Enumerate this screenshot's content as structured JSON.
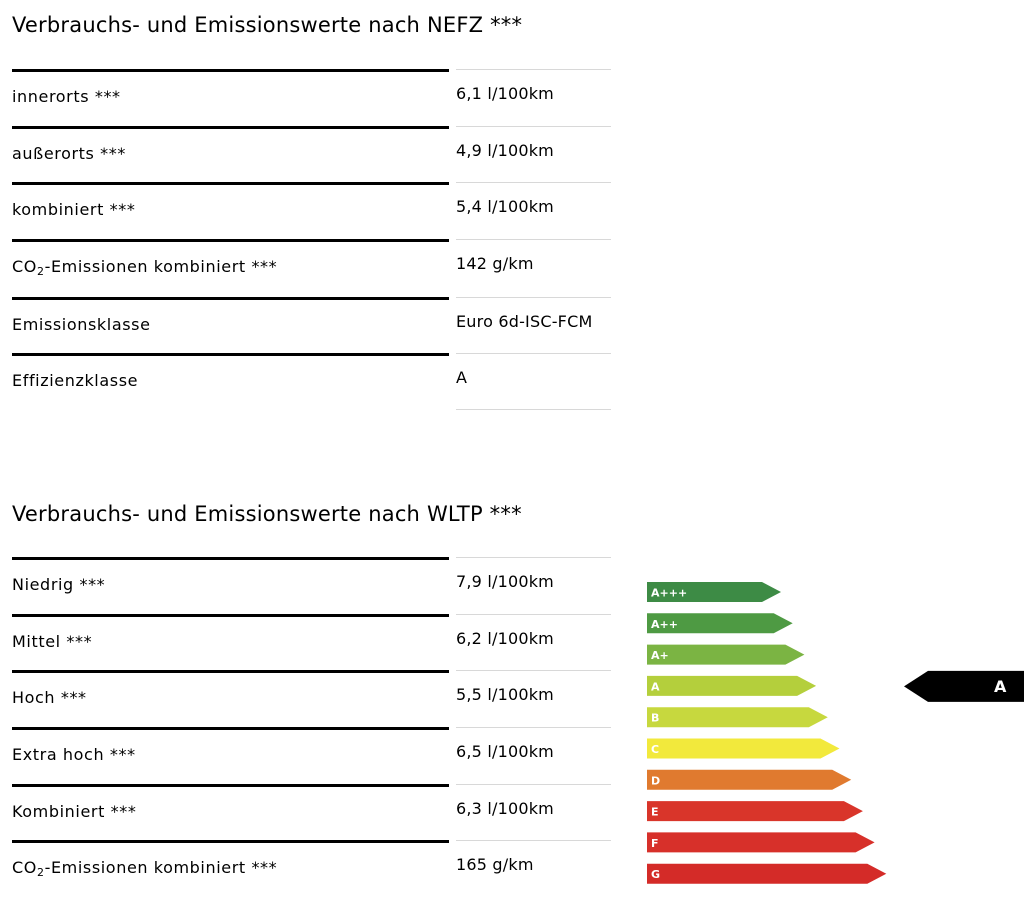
{
  "nefz": {
    "title": "Verbrauchs- und Emissionswerte nach NEFZ ***",
    "rows": [
      {
        "label": "innerorts ***",
        "value": "6,1 l/100km"
      },
      {
        "label": "außerorts ***",
        "value": "4,9 l/100km"
      },
      {
        "label": "kombiniert ***",
        "value": "5,4 l/100km"
      },
      {
        "label_pre": "CO",
        "label_sub": "2",
        "label_post": "-Emissionen kombiniert ***",
        "value": "142 g/km"
      },
      {
        "label": "Emissionsklasse",
        "value": "Euro 6d-ISC-FCM"
      },
      {
        "label": "Effizienzklasse",
        "value": "A"
      }
    ]
  },
  "wltp": {
    "title": "Verbrauchs- und Emissionswerte nach WLTP ***",
    "rows": [
      {
        "label": "Niedrig ***",
        "value": "7,9 l/100km"
      },
      {
        "label": "Mittel ***",
        "value": "6,2 l/100km"
      },
      {
        "label": "Hoch ***",
        "value": "5,5 l/100km"
      },
      {
        "label": "Extra hoch ***",
        "value": "6,5 l/100km"
      },
      {
        "label": "Kombiniert ***",
        "value": "6,3 l/100km"
      },
      {
        "label_pre": "CO",
        "label_sub": "2",
        "label_post": "-Emissionen kombiniert ***",
        "value": "165 g/km"
      }
    ]
  },
  "efficiency_label": {
    "classes": [
      {
        "label": "A+++",
        "color": "#3d8b45"
      },
      {
        "label": "A++",
        "color": "#4e9a43"
      },
      {
        "label": "A+",
        "color": "#7bb443"
      },
      {
        "label": "A",
        "color": "#b4cf3c"
      },
      {
        "label": "B",
        "color": "#c7d83e"
      },
      {
        "label": "C",
        "color": "#f2e93c"
      },
      {
        "label": "D",
        "color": "#e07a2f"
      },
      {
        "label": "E",
        "color": "#d9352a"
      },
      {
        "label": "F",
        "color": "#d7302a"
      },
      {
        "label": "G",
        "color": "#d42b28"
      }
    ],
    "selected_class": "A",
    "indicator_color": "#000000"
  }
}
